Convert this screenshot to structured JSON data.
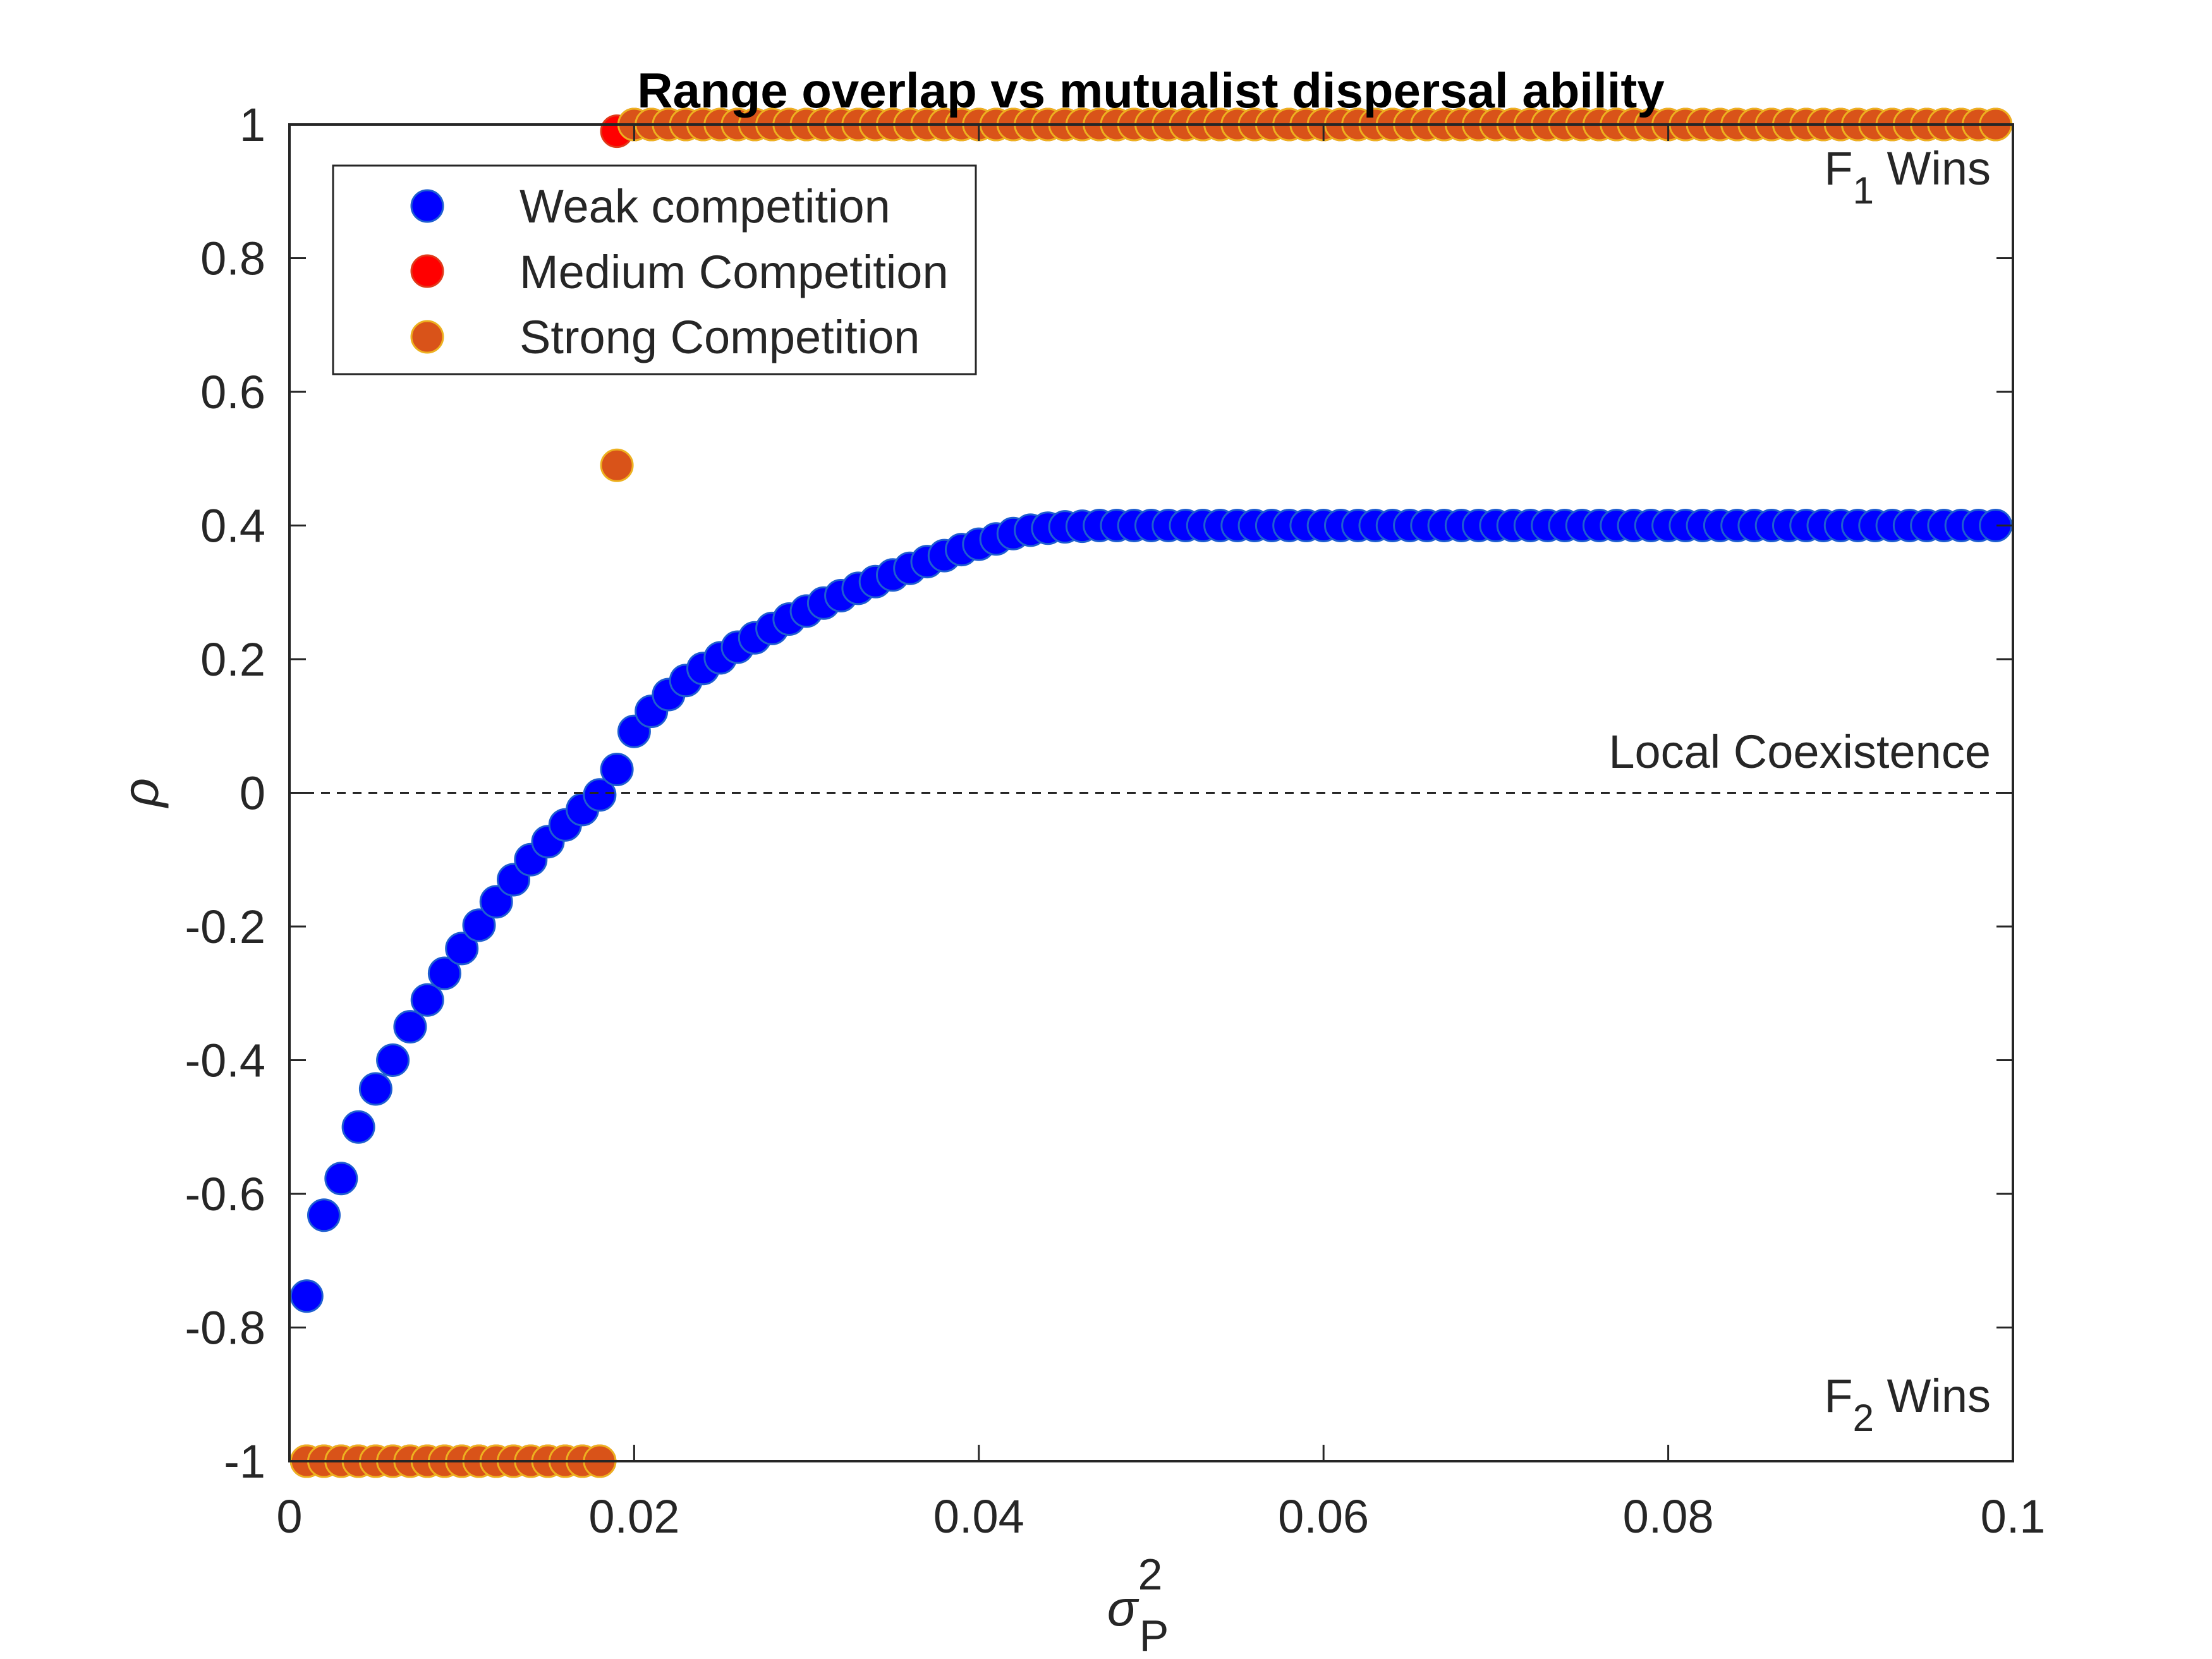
{
  "chart_data": {
    "type": "scatter",
    "title": "Range overlap vs mutualist dispersal ability",
    "xlabel": "σ",
    "xlabel_sup": "2",
    "xlabel_sub": "P",
    "ylabel": "ρ",
    "xlim": [
      0,
      0.1
    ],
    "ylim": [
      -1,
      1
    ],
    "x_ticks": [
      0,
      0.02,
      0.04,
      0.06,
      0.08,
      0.1
    ],
    "x_tick_labels": [
      "0",
      "0.02",
      "0.04",
      "0.06",
      "0.08",
      "0.1"
    ],
    "y_ticks": [
      -1,
      -0.8,
      -0.6,
      -0.4,
      -0.2,
      0,
      0.2,
      0.4,
      0.6,
      0.8,
      1
    ],
    "y_tick_labels": [
      "-1",
      "-0.8",
      "-0.6",
      "-0.4",
      "-0.2",
      "0",
      "0.2",
      "0.4",
      "0.6",
      "0.8",
      "1"
    ],
    "grid": false,
    "legend_position": "top-left",
    "reference_line": {
      "y": 0,
      "style": "dashed"
    },
    "annotations": {
      "f1_main": "F",
      "f1_sub": "1",
      "f1_rest": " Wins",
      "f2_main": "F",
      "f2_sub": "2",
      "f2_rest": " Wins",
      "coexistence": "Local Coexistence"
    },
    "x_step": 0.001,
    "series": [
      {
        "name": "Weak competition",
        "color": "#0000ff",
        "edge": "#1f5fd0",
        "x_start": 0.001,
        "values": [
          -0.753,
          -0.632,
          -0.577,
          -0.5,
          -0.443,
          -0.4,
          -0.35,
          -0.31,
          -0.27,
          -0.233,
          -0.198,
          -0.163,
          -0.13,
          -0.1,
          -0.073,
          -0.048,
          -0.025,
          -0.003,
          0.035,
          0.092,
          0.122,
          0.147,
          0.168,
          0.186,
          0.202,
          0.218,
          0.232,
          0.246,
          0.26,
          0.272,
          0.284,
          0.295,
          0.306,
          0.316,
          0.326,
          0.336,
          0.346,
          0.355,
          0.364,
          0.372,
          0.38,
          0.388,
          0.393,
          0.396,
          0.398,
          0.399,
          0.4,
          0.4,
          0.4,
          0.4,
          0.4,
          0.4,
          0.4,
          0.4,
          0.4,
          0.4,
          0.4,
          0.4,
          0.4,
          0.4,
          0.4,
          0.4,
          0.4,
          0.4,
          0.4,
          0.4,
          0.4,
          0.4,
          0.4,
          0.4,
          0.4,
          0.4,
          0.4,
          0.4,
          0.4,
          0.4,
          0.4,
          0.4,
          0.4,
          0.4,
          0.4,
          0.4,
          0.4,
          0.4,
          0.4,
          0.4,
          0.4,
          0.4,
          0.4,
          0.4,
          0.4,
          0.4,
          0.4,
          0.4,
          0.4,
          0.4,
          0.4,
          0.4,
          0.4
        ]
      },
      {
        "name": "Medium Competition",
        "color": "#ff0000",
        "edge": "#e03a1a",
        "x_start": 0.001,
        "values": [
          -1,
          -1,
          -1,
          -1,
          -1,
          -1,
          -1,
          -1,
          -1,
          -1,
          -1,
          -1,
          -1,
          -1,
          -1,
          -1,
          -1,
          -1,
          0.99,
          1,
          1,
          1,
          1,
          1,
          1,
          1,
          1,
          1,
          1,
          1,
          1,
          1,
          1,
          1,
          1,
          1,
          1,
          1,
          1,
          1,
          1,
          1,
          1,
          1,
          1,
          1,
          1,
          1,
          1,
          1,
          1,
          1,
          1,
          1,
          1,
          1,
          1,
          1,
          1,
          1,
          1,
          1,
          1,
          1,
          1,
          1,
          1,
          1,
          1,
          1,
          1,
          1,
          1,
          1,
          1,
          1,
          1,
          1,
          1,
          1,
          1,
          1,
          1,
          1,
          1,
          1,
          1,
          1,
          1,
          1,
          1,
          1,
          1,
          1,
          1,
          1,
          1,
          1,
          1
        ]
      },
      {
        "name": "Strong Competition",
        "color": "#d95319",
        "edge": "#edb120",
        "x_start": 0.001,
        "values": [
          -1,
          -1,
          -1,
          -1,
          -1,
          -1,
          -1,
          -1,
          -1,
          -1,
          -1,
          -1,
          -1,
          -1,
          -1,
          -1,
          -1,
          -1,
          0.49,
          1,
          1,
          1,
          1,
          1,
          1,
          1,
          1,
          1,
          1,
          1,
          1,
          1,
          1,
          1,
          1,
          1,
          1,
          1,
          1,
          1,
          1,
          1,
          1,
          1,
          1,
          1,
          1,
          1,
          1,
          1,
          1,
          1,
          1,
          1,
          1,
          1,
          1,
          1,
          1,
          1,
          1,
          1,
          1,
          1,
          1,
          1,
          1,
          1,
          1,
          1,
          1,
          1,
          1,
          1,
          1,
          1,
          1,
          1,
          1,
          1,
          1,
          1,
          1,
          1,
          1,
          1,
          1,
          1,
          1,
          1,
          1,
          1,
          1,
          1,
          1,
          1,
          1,
          1,
          1
        ]
      }
    ]
  }
}
